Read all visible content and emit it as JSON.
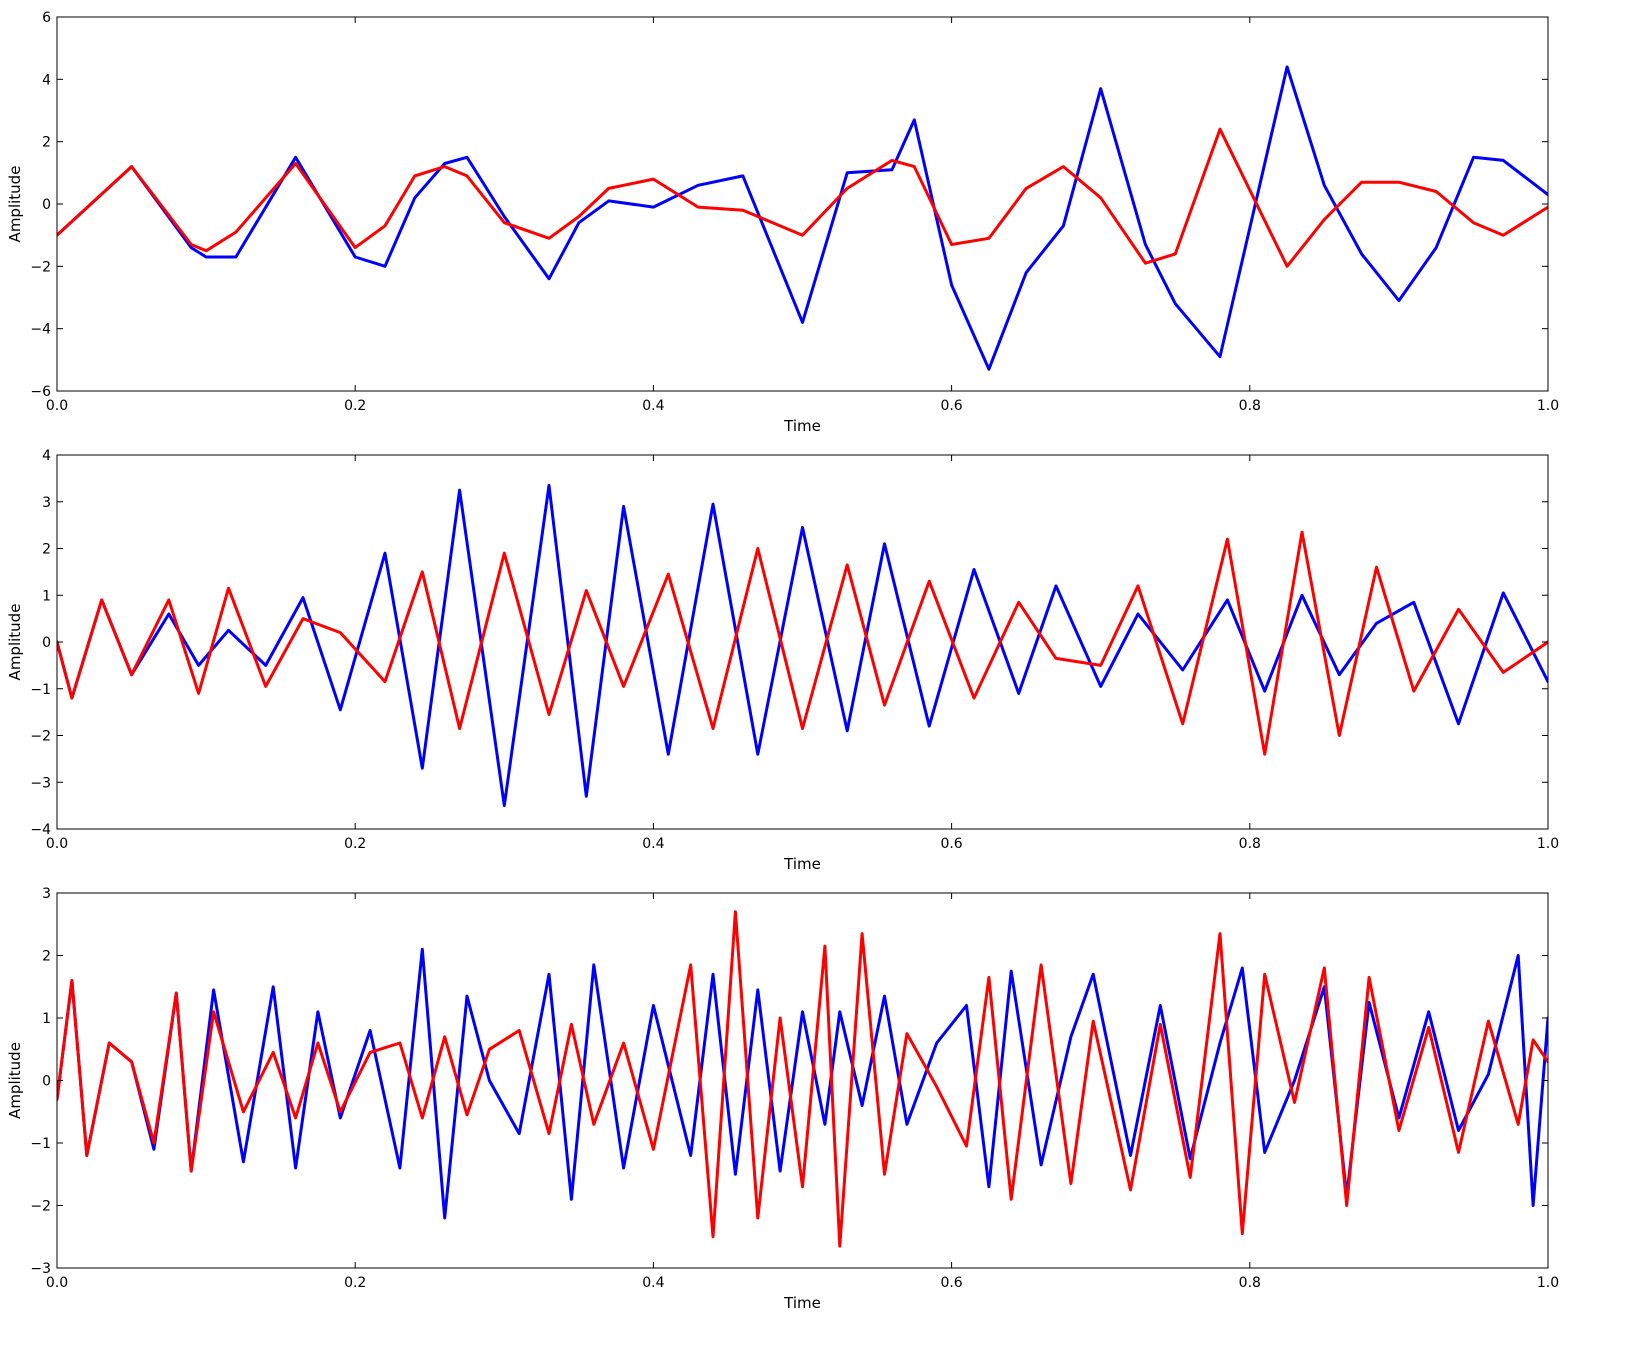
{
  "colors": {
    "series_1": "#0000ff",
    "series_2": "#ff0000",
    "axes": "#000000",
    "background": "#ffffff"
  },
  "chart_data": [
    {
      "type": "line",
      "title": "",
      "xlabel": "Time",
      "ylabel": "Amplitude",
      "xlim": [
        0,
        1
      ],
      "ylim": [
        -6,
        6
      ],
      "xticks": [
        "0.0",
        "0.2",
        "0.4",
        "0.6",
        "0.8",
        "1.0"
      ],
      "yticks": [
        "−6",
        "−4",
        "−2",
        "0",
        "2",
        "4",
        "6"
      ],
      "grid": false,
      "legend": "none",
      "x": [
        0.0,
        0.05,
        0.09,
        0.1,
        0.12,
        0.16,
        0.2,
        0.22,
        0.24,
        0.26,
        0.275,
        0.3,
        0.33,
        0.35,
        0.37,
        0.4,
        0.43,
        0.46,
        0.5,
        0.53,
        0.56,
        0.575,
        0.6,
        0.625,
        0.65,
        0.675,
        0.7,
        0.73,
        0.75,
        0.78,
        0.825,
        0.85,
        0.875,
        0.9,
        0.925,
        0.95,
        0.97,
        1.0
      ],
      "series": [
        {
          "color": "#0000ff",
          "values": [
            -1.0,
            1.2,
            -1.4,
            -1.7,
            -1.7,
            1.5,
            -1.7,
            -2.0,
            0.2,
            1.3,
            1.5,
            -0.4,
            -2.4,
            -0.6,
            0.1,
            -0.1,
            0.6,
            0.9,
            -3.8,
            1.0,
            1.1,
            2.7,
            -2.6,
            -5.3,
            -2.2,
            -0.7,
            3.7,
            -1.3,
            -3.2,
            -4.9,
            4.4,
            0.6,
            -1.6,
            -3.1,
            -1.4,
            1.5,
            1.4,
            0.3
          ]
        },
        {
          "color": "#ff0000",
          "values": [
            -1.0,
            1.2,
            -1.3,
            -1.5,
            -0.9,
            1.3,
            -1.4,
            -0.7,
            0.9,
            1.2,
            0.9,
            -0.6,
            -1.1,
            -0.4,
            0.5,
            0.8,
            -0.1,
            -0.2,
            -1.0,
            0.5,
            1.4,
            1.2,
            -1.3,
            -1.1,
            0.5,
            1.2,
            0.2,
            -1.9,
            -1.6,
            2.4,
            -2.0,
            -0.5,
            0.7,
            0.7,
            0.4,
            -0.6,
            -1.0,
            -0.1
          ]
        }
      ]
    },
    {
      "type": "line",
      "title": "",
      "xlabel": "Time",
      "ylabel": "Amplitude",
      "xlim": [
        0,
        1
      ],
      "ylim": [
        -4,
        4
      ],
      "xticks": [
        "0.0",
        "0.2",
        "0.4",
        "0.6",
        "0.8",
        "1.0"
      ],
      "yticks": [
        "−4",
        "−3",
        "−2",
        "−1",
        "0",
        "1",
        "2",
        "3",
        "4"
      ],
      "grid": false,
      "legend": "none",
      "x": [
        0.0,
        0.01,
        0.03,
        0.05,
        0.075,
        0.095,
        0.115,
        0.14,
        0.165,
        0.19,
        0.22,
        0.245,
        0.27,
        0.3,
        0.33,
        0.355,
        0.38,
        0.41,
        0.44,
        0.47,
        0.5,
        0.53,
        0.555,
        0.585,
        0.615,
        0.645,
        0.67,
        0.7,
        0.725,
        0.755,
        0.785,
        0.81,
        0.835,
        0.86,
        0.885,
        0.91,
        0.94,
        0.97,
        1.0
      ],
      "series": [
        {
          "color": "#0000ff",
          "values": [
            0.0,
            -1.2,
            0.9,
            -0.7,
            0.6,
            -0.5,
            0.25,
            -0.5,
            0.95,
            -1.45,
            1.9,
            -2.7,
            3.25,
            -3.5,
            3.35,
            -3.3,
            2.9,
            -2.4,
            2.95,
            -2.4,
            2.45,
            -1.9,
            2.1,
            -1.8,
            1.55,
            -1.1,
            1.2,
            -0.95,
            0.6,
            -0.6,
            0.9,
            -1.05,
            1.0,
            -0.7,
            0.4,
            0.85,
            -1.75,
            1.05,
            -0.85
          ]
        },
        {
          "color": "#ff0000",
          "values": [
            0.0,
            -1.2,
            0.9,
            -0.7,
            0.9,
            -1.1,
            1.15,
            -0.95,
            0.5,
            0.2,
            -0.85,
            1.5,
            -1.85,
            1.9,
            -1.55,
            1.1,
            -0.95,
            1.45,
            -1.85,
            2.0,
            -1.85,
            1.65,
            -1.35,
            1.3,
            -1.2,
            0.85,
            -0.35,
            -0.5,
            1.2,
            -1.75,
            2.2,
            -2.4,
            2.35,
            -2.0,
            1.6,
            -1.05,
            0.7,
            -0.65,
            0.0
          ]
        }
      ]
    },
    {
      "type": "line",
      "title": "",
      "xlabel": "Time",
      "ylabel": "Amplitude",
      "xlim": [
        0,
        1
      ],
      "ylim": [
        -3,
        3
      ],
      "xticks": [
        "0.0",
        "0.2",
        "0.4",
        "0.6",
        "0.8",
        "1.0"
      ],
      "yticks": [
        "−3",
        "−2",
        "−1",
        "0",
        "1",
        "2",
        "3"
      ],
      "grid": false,
      "legend": "none",
      "x": [
        0.0,
        0.01,
        0.02,
        0.035,
        0.05,
        0.065,
        0.08,
        0.09,
        0.105,
        0.125,
        0.145,
        0.16,
        0.175,
        0.19,
        0.21,
        0.23,
        0.245,
        0.26,
        0.275,
        0.29,
        0.31,
        0.33,
        0.345,
        0.36,
        0.38,
        0.4,
        0.425,
        0.44,
        0.455,
        0.47,
        0.485,
        0.5,
        0.515,
        0.525,
        0.54,
        0.555,
        0.57,
        0.59,
        0.61,
        0.625,
        0.64,
        0.66,
        0.68,
        0.695,
        0.72,
        0.74,
        0.76,
        0.78,
        0.795,
        0.81,
        0.83,
        0.85,
        0.865,
        0.88,
        0.9,
        0.92,
        0.94,
        0.96,
        0.98,
        0.99,
        1.0
      ],
      "series": [
        {
          "color": "#0000ff",
          "values": [
            -0.3,
            1.6,
            -1.2,
            0.6,
            0.3,
            -1.1,
            1.4,
            -1.45,
            1.45,
            -1.3,
            1.5,
            -1.4,
            1.1,
            -0.6,
            0.8,
            -1.4,
            2.1,
            -2.2,
            1.35,
            0.0,
            -0.85,
            1.7,
            -1.9,
            1.85,
            -1.4,
            1.2,
            -1.2,
            1.7,
            -1.5,
            1.45,
            -1.45,
            1.1,
            -0.7,
            1.1,
            -0.4,
            1.35,
            -0.7,
            0.6,
            1.2,
            -1.7,
            1.75,
            -1.35,
            0.7,
            1.7,
            -1.2,
            1.2,
            -1.25,
            0.6,
            1.8,
            -1.15,
            0.0,
            1.5,
            -1.85,
            1.25,
            -0.6,
            1.1,
            -0.8,
            0.1,
            2.0,
            -2.0,
            1.0
          ]
        },
        {
          "color": "#ff0000",
          "values": [
            -0.3,
            1.6,
            -1.2,
            0.6,
            0.3,
            -1.0,
            1.4,
            -1.45,
            1.1,
            -0.5,
            0.45,
            -0.6,
            0.6,
            -0.5,
            0.45,
            0.6,
            -0.6,
            0.7,
            -0.55,
            0.5,
            0.8,
            -0.85,
            0.9,
            -0.7,
            0.6,
            -1.1,
            1.85,
            -2.5,
            2.7,
            -2.2,
            1.0,
            -1.7,
            2.15,
            -2.65,
            2.35,
            -1.5,
            0.75,
            -0.1,
            -1.05,
            1.65,
            -1.9,
            1.85,
            -1.65,
            0.95,
            -1.75,
            0.9,
            -1.55,
            2.35,
            -2.45,
            1.7,
            -0.35,
            1.8,
            -2.0,
            1.65,
            -0.8,
            0.85,
            -1.15,
            0.95,
            -0.7,
            0.65,
            0.3
          ]
        }
      ]
    }
  ]
}
